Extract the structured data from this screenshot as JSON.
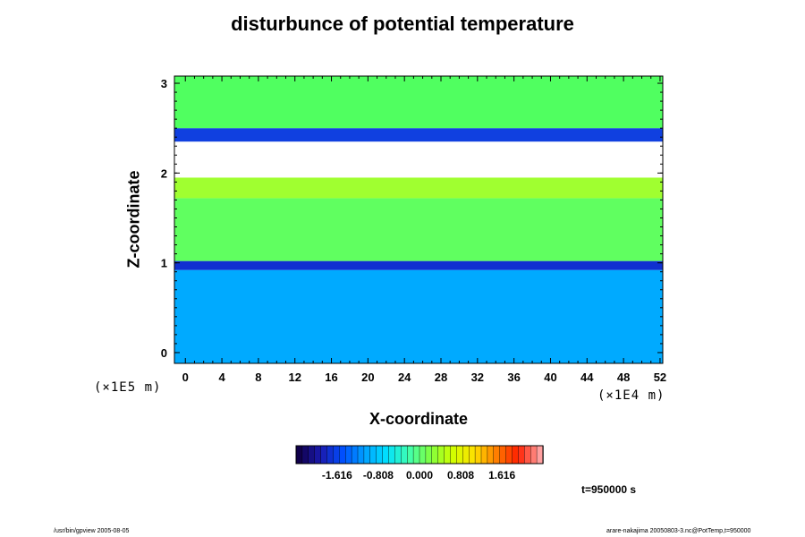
{
  "chart_data": {
    "type": "heatmap",
    "title": "disturbunce of potential temperature",
    "xlabel": "X-coordinate",
    "ylabel": "Z-coordinate",
    "x_scale_label": "(×1E4 m)",
    "y_scale_label": "(×1E5 m)",
    "xlim": [
      -1.2,
      52.3
    ],
    "ylim": [
      -0.12,
      3.08
    ],
    "x_ticks": [
      0,
      4,
      8,
      12,
      16,
      20,
      24,
      28,
      32,
      36,
      40,
      44,
      48,
      52
    ],
    "y_ticks": [
      0,
      1,
      2,
      3
    ],
    "colorbar": {
      "range": [
        -2.42,
        2.42
      ],
      "tick_values": [
        -1.616,
        -0.808,
        0.0,
        0.808,
        1.616
      ],
      "tick_labels": [
        "-1.616",
        "-0.808",
        "0.000",
        "0.808",
        "1.616"
      ],
      "colormap": [
        "#10004a",
        "#1a1ab0",
        "#0050ff",
        "#00a0ff",
        "#00e0ff",
        "#40ffb0",
        "#80ff40",
        "#d0ff00",
        "#ffe000",
        "#ff8000",
        "#ff2000",
        "#ffa0a0"
      ]
    },
    "field_bands": [
      {
        "z_range": [
          -0.12,
          0.92
        ],
        "value": -0.55,
        "description_color": "#00aaff"
      },
      {
        "z_range": [
          0.92,
          1.02
        ],
        "value": -1.45,
        "description_color": "#1030d0"
      },
      {
        "z_range": [
          1.02,
          1.72
        ],
        "value": 0.35,
        "description_color": "#60ff60"
      },
      {
        "z_range": [
          1.72,
          1.95
        ],
        "value": 0.9,
        "description_color": "#a0ff30"
      },
      {
        "z_range": [
          1.95,
          2.35
        ],
        "value": null,
        "description_color": "#ffffff"
      },
      {
        "z_range": [
          2.35,
          2.5
        ],
        "value": -1.2,
        "description_color": "#1040e0"
      },
      {
        "z_range": [
          2.5,
          3.08
        ],
        "value": 0.4,
        "description_color": "#50ff60"
      }
    ]
  },
  "time_label": "t=950000 s",
  "footer_left": "/usr/bin/gpview 2005-08-05",
  "footer_right": "arare-nakajima 20050803-3.nc@PotTemp,t=950000"
}
